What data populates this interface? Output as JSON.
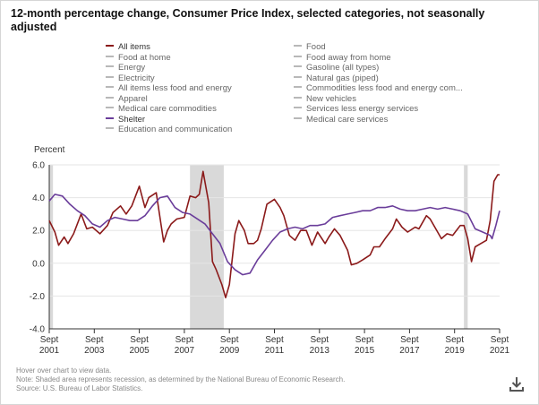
{
  "title": "12-month percentage change, Consumer Price Index, selected categories, not seasonally adjusted",
  "legend": [
    {
      "label": "All items",
      "color": "#8b1a1a",
      "active": true
    },
    {
      "label": "Food",
      "color": "#b8b8b8",
      "active": false
    },
    {
      "label": "Food at home",
      "color": "#b8b8b8",
      "active": false
    },
    {
      "label": "Food away from home",
      "color": "#b8b8b8",
      "active": false
    },
    {
      "label": "Energy",
      "color": "#b8b8b8",
      "active": false
    },
    {
      "label": "Gasoline (all types)",
      "color": "#b8b8b8",
      "active": false
    },
    {
      "label": "Electricity",
      "color": "#b8b8b8",
      "active": false
    },
    {
      "label": "Natural gas (piped)",
      "color": "#b8b8b8",
      "active": false
    },
    {
      "label": "All items less food and energy",
      "color": "#b8b8b8",
      "active": false
    },
    {
      "label": "Commodities less food and energy com...",
      "color": "#b8b8b8",
      "active": false
    },
    {
      "label": "Apparel",
      "color": "#b8b8b8",
      "active": false
    },
    {
      "label": "New vehicles",
      "color": "#b8b8b8",
      "active": false
    },
    {
      "label": "Medical care commodities",
      "color": "#b8b8b8",
      "active": false
    },
    {
      "label": "Services less energy services",
      "color": "#b8b8b8",
      "active": false
    },
    {
      "label": "Shelter",
      "color": "#6a3d9a",
      "active": true
    },
    {
      "label": "Medical care services",
      "color": "#b8b8b8",
      "active": false
    },
    {
      "label": "Education and communication",
      "color": "#b8b8b8",
      "active": false
    }
  ],
  "footer": {
    "line1": "Hover over chart to view data.",
    "line2": "Note: Shaded area represents recession, as determined by the National Bureau of Economic Research.",
    "line3": "Source: U.S. Bureau of Labor Statistics."
  },
  "download_icon": "download-icon",
  "chart_data": {
    "type": "line",
    "ylabel": "Percent",
    "ylim": [
      -4.0,
      6.0
    ],
    "yticks": [
      "6.0",
      "4.0",
      "2.0",
      "0.0",
      "-2.0",
      "-4.0"
    ],
    "x_range": [
      2001.667,
      2021.667
    ],
    "xticks": [
      {
        "top": "Sept",
        "bottom": "2001",
        "x": 2001.667
      },
      {
        "top": "Sept",
        "bottom": "2003",
        "x": 2003.667
      },
      {
        "top": "Sept",
        "bottom": "2005",
        "x": 2005.667
      },
      {
        "top": "Sept",
        "bottom": "2007",
        "x": 2007.667
      },
      {
        "top": "Sept",
        "bottom": "2009",
        "x": 2009.667
      },
      {
        "top": "Sept",
        "bottom": "2011",
        "x": 2011.667
      },
      {
        "top": "Sept",
        "bottom": "2013",
        "x": 2013.667
      },
      {
        "top": "Sept",
        "bottom": "2015",
        "x": 2015.667
      },
      {
        "top": "Sept",
        "bottom": "2017",
        "x": 2017.667
      },
      {
        "top": "Sept",
        "bottom": "2019",
        "x": 2019.667
      },
      {
        "top": "Sept",
        "bottom": "2021",
        "x": 2021.667
      }
    ],
    "recessions": [
      [
        2001.667,
        2001.833
      ],
      [
        2007.917,
        2009.417
      ],
      [
        2020.083,
        2020.25
      ]
    ],
    "series": [
      {
        "name": "All items",
        "color": "#8b1a1a",
        "points": [
          [
            2001.667,
            2.6
          ],
          [
            2001.917,
            1.9
          ],
          [
            2002.083,
            1.1
          ],
          [
            2002.333,
            1.6
          ],
          [
            2002.5,
            1.2
          ],
          [
            2002.75,
            1.8
          ],
          [
            2003.083,
            3.0
          ],
          [
            2003.333,
            2.1
          ],
          [
            2003.583,
            2.2
          ],
          [
            2003.917,
            1.8
          ],
          [
            2004.25,
            2.3
          ],
          [
            2004.5,
            3.1
          ],
          [
            2004.833,
            3.5
          ],
          [
            2005.083,
            3.0
          ],
          [
            2005.333,
            3.5
          ],
          [
            2005.667,
            4.7
          ],
          [
            2005.917,
            3.4
          ],
          [
            2006.083,
            4.0
          ],
          [
            2006.417,
            4.3
          ],
          [
            2006.75,
            1.3
          ],
          [
            2006.917,
            2.0
          ],
          [
            2007.083,
            2.4
          ],
          [
            2007.333,
            2.7
          ],
          [
            2007.667,
            2.8
          ],
          [
            2007.917,
            4.1
          ],
          [
            2008.167,
            4.0
          ],
          [
            2008.333,
            4.2
          ],
          [
            2008.5,
            5.6
          ],
          [
            2008.75,
            3.7
          ],
          [
            2008.917,
            0.1
          ],
          [
            2009.083,
            -0.4
          ],
          [
            2009.333,
            -1.3
          ],
          [
            2009.5,
            -2.1
          ],
          [
            2009.667,
            -1.3
          ],
          [
            2009.917,
            1.8
          ],
          [
            2010.083,
            2.6
          ],
          [
            2010.333,
            2.0
          ],
          [
            2010.5,
            1.2
          ],
          [
            2010.75,
            1.2
          ],
          [
            2010.917,
            1.4
          ],
          [
            2011.083,
            2.1
          ],
          [
            2011.333,
            3.6
          ],
          [
            2011.667,
            3.9
          ],
          [
            2011.917,
            3.4
          ],
          [
            2012.083,
            2.9
          ],
          [
            2012.333,
            1.7
          ],
          [
            2012.583,
            1.4
          ],
          [
            2012.833,
            2.0
          ],
          [
            2013.083,
            2.0
          ],
          [
            2013.333,
            1.1
          ],
          [
            2013.583,
            1.9
          ],
          [
            2013.917,
            1.2
          ],
          [
            2014.083,
            1.6
          ],
          [
            2014.333,
            2.1
          ],
          [
            2014.583,
            1.7
          ],
          [
            2014.917,
            0.8
          ],
          [
            2015.083,
            -0.1
          ],
          [
            2015.333,
            0.0
          ],
          [
            2015.583,
            0.2
          ],
          [
            2015.917,
            0.5
          ],
          [
            2016.083,
            1.0
          ],
          [
            2016.333,
            1.0
          ],
          [
            2016.583,
            1.5
          ],
          [
            2016.917,
            2.1
          ],
          [
            2017.083,
            2.7
          ],
          [
            2017.333,
            2.2
          ],
          [
            2017.583,
            1.9
          ],
          [
            2017.917,
            2.2
          ],
          [
            2018.083,
            2.1
          ],
          [
            2018.417,
            2.9
          ],
          [
            2018.583,
            2.7
          ],
          [
            2018.917,
            1.9
          ],
          [
            2019.083,
            1.5
          ],
          [
            2019.333,
            1.8
          ],
          [
            2019.583,
            1.7
          ],
          [
            2019.917,
            2.3
          ],
          [
            2020.083,
            2.3
          ],
          [
            2020.25,
            1.5
          ],
          [
            2020.417,
            0.1
          ],
          [
            2020.583,
            1.0
          ],
          [
            2020.833,
            1.2
          ],
          [
            2021.083,
            1.4
          ],
          [
            2021.25,
            2.6
          ],
          [
            2021.417,
            5.0
          ],
          [
            2021.583,
            5.4
          ],
          [
            2021.667,
            5.4
          ]
        ]
      },
      {
        "name": "Shelter",
        "color": "#6a3d9a",
        "points": [
          [
            2001.667,
            3.8
          ],
          [
            2001.917,
            4.2
          ],
          [
            2002.25,
            4.1
          ],
          [
            2002.583,
            3.6
          ],
          [
            2002.917,
            3.2
          ],
          [
            2003.25,
            2.9
          ],
          [
            2003.583,
            2.4
          ],
          [
            2003.917,
            2.2
          ],
          [
            2004.25,
            2.6
          ],
          [
            2004.583,
            2.8
          ],
          [
            2004.917,
            2.7
          ],
          [
            2005.25,
            2.6
          ],
          [
            2005.583,
            2.6
          ],
          [
            2005.917,
            2.9
          ],
          [
            2006.25,
            3.5
          ],
          [
            2006.583,
            4.0
          ],
          [
            2006.917,
            4.1
          ],
          [
            2007.25,
            3.4
          ],
          [
            2007.583,
            3.1
          ],
          [
            2007.917,
            3.0
          ],
          [
            2008.25,
            2.7
          ],
          [
            2008.583,
            2.4
          ],
          [
            2008.917,
            1.8
          ],
          [
            2009.25,
            1.2
          ],
          [
            2009.583,
            0.1
          ],
          [
            2009.917,
            -0.4
          ],
          [
            2010.25,
            -0.7
          ],
          [
            2010.583,
            -0.6
          ],
          [
            2010.917,
            0.2
          ],
          [
            2011.25,
            0.8
          ],
          [
            2011.583,
            1.4
          ],
          [
            2011.917,
            1.9
          ],
          [
            2012.25,
            2.1
          ],
          [
            2012.583,
            2.2
          ],
          [
            2012.917,
            2.1
          ],
          [
            2013.25,
            2.3
          ],
          [
            2013.583,
            2.3
          ],
          [
            2013.917,
            2.4
          ],
          [
            2014.25,
            2.8
          ],
          [
            2014.583,
            2.9
          ],
          [
            2014.917,
            3.0
          ],
          [
            2015.25,
            3.1
          ],
          [
            2015.583,
            3.2
          ],
          [
            2015.917,
            3.2
          ],
          [
            2016.25,
            3.4
          ],
          [
            2016.583,
            3.4
          ],
          [
            2016.917,
            3.5
          ],
          [
            2017.25,
            3.3
          ],
          [
            2017.583,
            3.2
          ],
          [
            2017.917,
            3.2
          ],
          [
            2018.25,
            3.3
          ],
          [
            2018.583,
            3.4
          ],
          [
            2018.917,
            3.3
          ],
          [
            2019.25,
            3.4
          ],
          [
            2019.583,
            3.3
          ],
          [
            2019.917,
            3.2
          ],
          [
            2020.25,
            3.0
          ],
          [
            2020.583,
            2.1
          ],
          [
            2020.917,
            1.9
          ],
          [
            2021.25,
            1.7
          ],
          [
            2021.333,
            1.5
          ],
          [
            2021.5,
            2.3
          ],
          [
            2021.667,
            3.2
          ]
        ]
      }
    ]
  }
}
